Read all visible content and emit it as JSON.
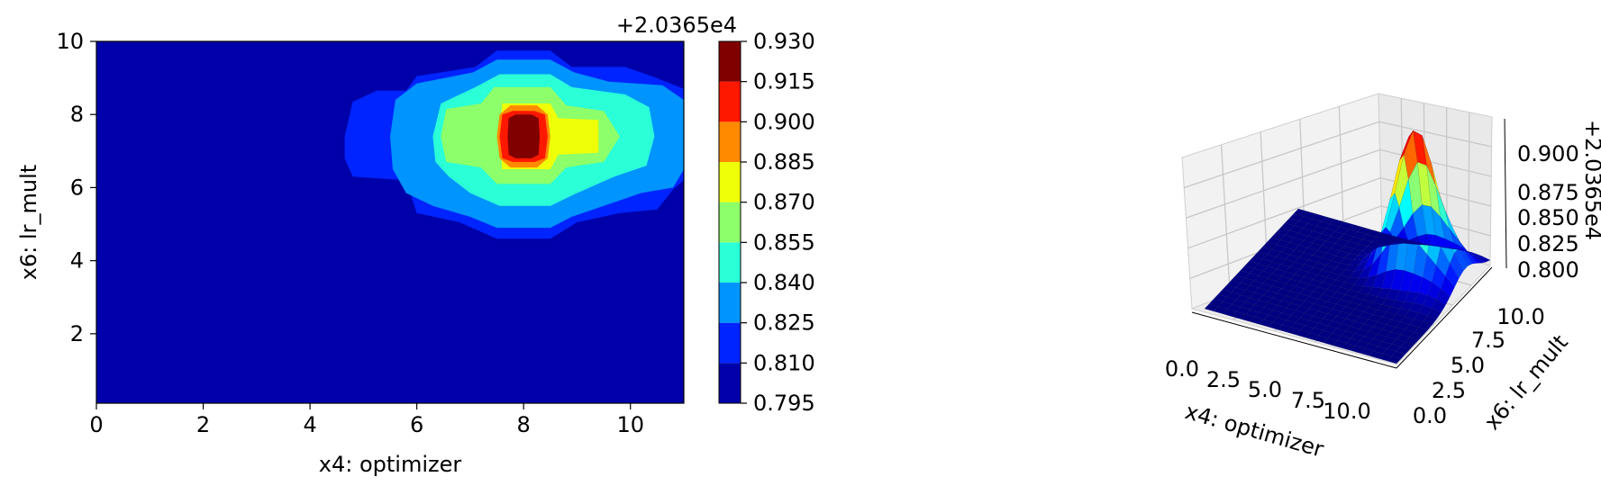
{
  "chart_data": [
    {
      "type": "contour",
      "xlabel": "x4: optimizer",
      "ylabel": "x6: lr_mult",
      "xlim": [
        0,
        11
      ],
      "ylim": [
        0.1,
        10
      ],
      "xticks": [
        "0",
        "2",
        "4",
        "6",
        "8",
        "10"
      ],
      "xtick_values": [
        0,
        2,
        4,
        6,
        8,
        10
      ],
      "yticks": [
        "2",
        "4",
        "6",
        "8",
        "10"
      ],
      "ytick_values": [
        2,
        4,
        6,
        8,
        10
      ],
      "colorbar": {
        "offset_label": "+2.0365e4",
        "levels": [
          0.795,
          0.81,
          0.825,
          0.84,
          0.855,
          0.87,
          0.885,
          0.9,
          0.915,
          0.93
        ],
        "tick_labels": [
          "0.795",
          "0.810",
          "0.825",
          "0.840",
          "0.855",
          "0.870",
          "0.885",
          "0.900",
          "0.915",
          "0.930"
        ],
        "colors": [
          "#0000aa",
          "#0024ff",
          "#0094ff",
          "#2affd8",
          "#8cff6a",
          "#eeff08",
          "#ff8a00",
          "#ff1800",
          "#800000"
        ]
      },
      "peak": {
        "x": 8.0,
        "y": 7.4,
        "z": 0.93
      },
      "contours": [
        {
          "level_index": 1,
          "points": [
            [
              4.65,
              7.4
            ],
            [
              4.8,
              8.35
            ],
            [
              5.25,
              8.65
            ],
            [
              5.8,
              8.65
            ],
            [
              6.0,
              9.05
            ],
            [
              7.1,
              9.3
            ],
            [
              7.5,
              9.75
            ],
            [
              8.5,
              9.75
            ],
            [
              8.9,
              9.3
            ],
            [
              9.9,
              9.3
            ],
            [
              10.4,
              9.05
            ],
            [
              11.0,
              8.7
            ],
            [
              11.0,
              6.2
            ],
            [
              10.8,
              5.95
            ],
            [
              10.5,
              5.4
            ],
            [
              9.8,
              5.3
            ],
            [
              9.0,
              5.05
            ],
            [
              8.5,
              4.6
            ],
            [
              7.5,
              4.6
            ],
            [
              6.8,
              5.05
            ],
            [
              6.0,
              5.3
            ],
            [
              5.8,
              6.2
            ],
            [
              4.8,
              6.3
            ],
            [
              4.65,
              6.8
            ]
          ]
        },
        {
          "level_index": 2,
          "points": [
            [
              5.5,
              7.4
            ],
            [
              5.6,
              8.4
            ],
            [
              6.0,
              8.85
            ],
            [
              7.05,
              9.15
            ],
            [
              7.5,
              9.5
            ],
            [
              8.5,
              9.5
            ],
            [
              8.95,
              9.15
            ],
            [
              9.6,
              8.9
            ],
            [
              10.6,
              8.8
            ],
            [
              11.0,
              8.4
            ],
            [
              11.0,
              6.5
            ],
            [
              10.8,
              6.0
            ],
            [
              10.2,
              5.85
            ],
            [
              9.5,
              5.5
            ],
            [
              8.9,
              5.2
            ],
            [
              8.5,
              4.9
            ],
            [
              7.5,
              4.9
            ],
            [
              7.0,
              5.2
            ],
            [
              6.3,
              5.5
            ],
            [
              5.8,
              5.85
            ],
            [
              5.55,
              6.5
            ]
          ]
        },
        {
          "level_index": 3,
          "points": [
            [
              6.3,
              7.4
            ],
            [
              6.45,
              8.3
            ],
            [
              7.1,
              8.75
            ],
            [
              7.55,
              9.1
            ],
            [
              8.5,
              9.1
            ],
            [
              8.9,
              8.75
            ],
            [
              9.9,
              8.55
            ],
            [
              10.35,
              8.2
            ],
            [
              10.45,
              7.4
            ],
            [
              10.3,
              6.6
            ],
            [
              9.7,
              6.3
            ],
            [
              9.0,
              5.85
            ],
            [
              8.5,
              5.5
            ],
            [
              7.55,
              5.5
            ],
            [
              7.0,
              5.85
            ],
            [
              6.6,
              6.3
            ],
            [
              6.35,
              6.7
            ]
          ]
        },
        {
          "level_index": 4,
          "points": [
            [
              6.45,
              7.4
            ],
            [
              6.55,
              8.15
            ],
            [
              7.2,
              8.3
            ],
            [
              7.45,
              8.75
            ],
            [
              8.5,
              8.75
            ],
            [
              8.8,
              8.25
            ],
            [
              9.5,
              8.1
            ],
            [
              9.8,
              7.4
            ],
            [
              9.5,
              6.7
            ],
            [
              8.8,
              6.55
            ],
            [
              8.5,
              6.1
            ],
            [
              7.5,
              6.1
            ],
            [
              7.2,
              6.55
            ],
            [
              6.55,
              6.7
            ]
          ]
        },
        {
          "level_index": 5,
          "points": [
            [
              7.55,
              7.4
            ],
            [
              7.6,
              8.3
            ],
            [
              8.5,
              8.3
            ],
            [
              8.65,
              7.9
            ],
            [
              9.4,
              7.85
            ],
            [
              9.4,
              6.95
            ],
            [
              8.65,
              6.9
            ],
            [
              8.5,
              6.5
            ],
            [
              7.6,
              6.5
            ]
          ]
        },
        {
          "level_index": 6,
          "points": [
            [
              7.5,
              7.4
            ],
            [
              7.55,
              8.0
            ],
            [
              7.75,
              8.25
            ],
            [
              8.25,
              8.25
            ],
            [
              8.45,
              8.0
            ],
            [
              8.5,
              7.4
            ],
            [
              8.45,
              6.8
            ],
            [
              8.25,
              6.55
            ],
            [
              7.75,
              6.55
            ],
            [
              7.55,
              6.8
            ]
          ]
        },
        {
          "level_index": 7,
          "points": [
            [
              7.55,
              7.4
            ],
            [
              7.6,
              8.0
            ],
            [
              7.8,
              8.1
            ],
            [
              8.2,
              8.1
            ],
            [
              8.4,
              8.0
            ],
            [
              8.45,
              7.4
            ],
            [
              8.4,
              6.8
            ],
            [
              8.2,
              6.7
            ],
            [
              7.8,
              6.7
            ],
            [
              7.6,
              6.8
            ]
          ]
        },
        {
          "level_index": 8,
          "points": [
            [
              7.7,
              7.4
            ],
            [
              7.72,
              7.9
            ],
            [
              7.85,
              8.0
            ],
            [
              8.15,
              8.0
            ],
            [
              8.28,
              7.9
            ],
            [
              8.3,
              7.4
            ],
            [
              8.28,
              6.9
            ],
            [
              8.15,
              6.8
            ],
            [
              7.85,
              6.8
            ],
            [
              7.72,
              6.9
            ]
          ]
        }
      ]
    },
    {
      "type": "surface3d",
      "xlabel": "x4: optimizer",
      "ylabel": "x6: lr_mult",
      "zlabel": "+2.0365e4",
      "xticks": [
        "0.0",
        "2.5",
        "5.0",
        "7.5",
        "10.0"
      ],
      "yticks": [
        "0.0",
        "2.5",
        "5.0",
        "7.5",
        "10.0"
      ],
      "zticks": [
        "0.800",
        "0.825",
        "0.850",
        "0.875",
        "0.900"
      ],
      "zlim": [
        0.795,
        0.93
      ]
    }
  ]
}
